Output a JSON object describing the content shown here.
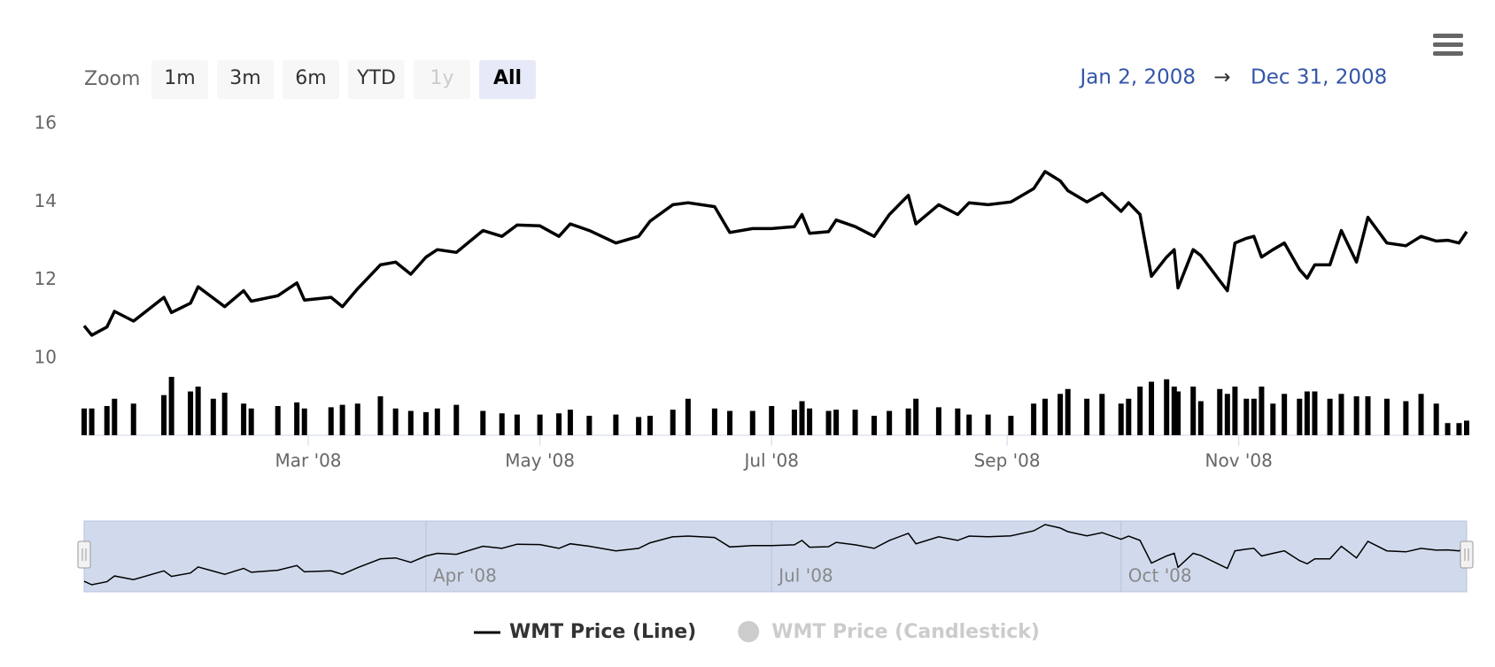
{
  "chart_data": {
    "type": "line",
    "range_selector": {
      "label": "Zoom",
      "buttons": [
        "1m",
        "3m",
        "6m",
        "YTD",
        "1y",
        "All"
      ],
      "selected": "All",
      "disabled": [
        "1y"
      ]
    },
    "range": {
      "from": "Jan 2, 2008",
      "separator": "→",
      "to": "Dec 31, 2008"
    },
    "x": [
      "2008-01-02",
      "2008-01-04",
      "2008-01-08",
      "2008-01-10",
      "2008-01-15",
      "2008-01-23",
      "2008-01-25",
      "2008-01-30",
      "2008-02-01",
      "2008-02-05",
      "2008-02-08",
      "2008-02-13",
      "2008-02-15",
      "2008-02-22",
      "2008-02-27",
      "2008-02-29",
      "2008-03-07",
      "2008-03-10",
      "2008-03-14",
      "2008-03-20",
      "2008-03-24",
      "2008-03-28",
      "2008-04-01",
      "2008-04-04",
      "2008-04-09",
      "2008-04-16",
      "2008-04-21",
      "2008-04-25",
      "2008-05-01",
      "2008-05-06",
      "2008-05-09",
      "2008-05-14",
      "2008-05-21",
      "2008-05-27",
      "2008-05-30",
      "2008-06-05",
      "2008-06-09",
      "2008-06-16",
      "2008-06-20",
      "2008-06-26",
      "2008-07-01",
      "2008-07-07",
      "2008-07-09",
      "2008-07-11",
      "2008-07-16",
      "2008-07-18",
      "2008-07-23",
      "2008-07-28",
      "2008-08-01",
      "2008-08-06",
      "2008-08-08",
      "2008-08-14",
      "2008-08-19",
      "2008-08-22",
      "2008-08-27",
      "2008-09-02",
      "2008-09-08",
      "2008-09-11",
      "2008-09-15",
      "2008-09-17",
      "2008-09-22",
      "2008-09-26",
      "2008-10-01",
      "2008-10-03",
      "2008-10-06",
      "2008-10-09",
      "2008-10-13",
      "2008-10-15",
      "2008-10-16",
      "2008-10-20",
      "2008-10-22",
      "2008-10-27",
      "2008-10-29",
      "2008-10-31",
      "2008-11-03",
      "2008-11-05",
      "2008-11-07",
      "2008-11-10",
      "2008-11-13",
      "2008-11-17",
      "2008-11-19",
      "2008-11-21",
      "2008-11-25",
      "2008-11-28",
      "2008-12-02",
      "2008-12-05",
      "2008-12-10",
      "2008-12-15",
      "2008-12-19",
      "2008-12-23",
      "2008-12-26",
      "2008-12-29",
      "2008-12-31"
    ],
    "series": [
      {
        "name": "WMT Price (Line)",
        "color": "#000000",
        "visible": true,
        "values": [
          10.83,
          10.59,
          10.8,
          11.2,
          10.95,
          11.56,
          11.17,
          11.41,
          11.83,
          11.54,
          11.32,
          11.73,
          11.46,
          11.6,
          11.93,
          11.49,
          11.56,
          11.32,
          11.78,
          12.39,
          12.46,
          12.15,
          12.59,
          12.78,
          12.71,
          13.27,
          13.12,
          13.41,
          13.39,
          13.12,
          13.44,
          13.27,
          12.95,
          13.12,
          13.51,
          13.93,
          13.98,
          13.88,
          13.22,
          13.32,
          13.32,
          13.37,
          13.68,
          13.2,
          13.24,
          13.54,
          13.37,
          13.12,
          13.68,
          14.17,
          13.44,
          13.93,
          13.68,
          13.98,
          13.93,
          14.0,
          14.34,
          14.78,
          14.54,
          14.29,
          14.0,
          14.22,
          13.76,
          13.98,
          13.68,
          12.1,
          12.59,
          12.78,
          11.8,
          12.78,
          12.63,
          11.98,
          11.73,
          12.95,
          13.07,
          13.12,
          12.59,
          12.78,
          12.95,
          12.27,
          12.05,
          12.39,
          12.39,
          13.27,
          12.46,
          13.61,
          12.95,
          12.88,
          13.12,
          13.0,
          13.02,
          12.95,
          13.24
        ]
      },
      {
        "name": "WMT Price (Candlestick)",
        "color": "#cccccc",
        "visible": false
      }
    ],
    "volume": {
      "color": "#000000",
      "values": [
        22,
        22,
        24,
        30,
        26,
        33,
        48,
        36,
        40,
        30,
        35,
        26,
        22,
        24,
        27,
        22,
        23,
        25,
        26,
        32,
        22,
        20,
        19,
        22,
        25,
        20,
        18,
        17,
        17,
        18,
        21,
        16,
        17,
        15,
        16,
        21,
        30,
        22,
        20,
        20,
        24,
        21,
        28,
        22,
        20,
        21,
        21,
        16,
        20,
        22,
        30,
        23,
        22,
        17,
        17,
        16,
        26,
        30,
        34,
        38,
        30,
        34,
        26,
        30,
        40,
        44,
        46,
        40,
        36,
        40,
        28,
        38,
        34,
        40,
        30,
        30,
        40,
        26,
        34,
        30,
        36,
        36,
        30,
        34,
        32,
        32,
        30,
        28,
        34,
        26,
        10,
        10,
        12
      ]
    },
    "xlim": [
      "2008-01-02",
      "2008-12-31"
    ],
    "xticks": [
      {
        "value": "2008-03-01",
        "label": "Mar '08"
      },
      {
        "value": "2008-05-01",
        "label": "May '08"
      },
      {
        "value": "2008-07-01",
        "label": "Jul '08"
      },
      {
        "value": "2008-09-01",
        "label": "Sep '08"
      },
      {
        "value": "2008-11-01",
        "label": "Nov '08"
      }
    ],
    "ylim": [
      10,
      16
    ],
    "yticks": [
      10,
      12,
      14,
      16
    ],
    "navigator_xticks": [
      {
        "value": "2008-04-01",
        "label": "Apr '08"
      },
      {
        "value": "2008-07-01",
        "label": "Jul '08"
      },
      {
        "value": "2008-10-01",
        "label": "Oct '08"
      }
    ],
    "grid": false
  }
}
